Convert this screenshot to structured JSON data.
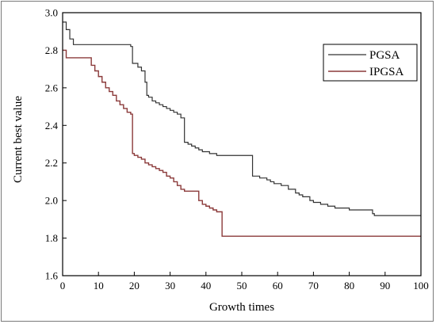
{
  "chart_data": {
    "type": "line",
    "title": "",
    "xlabel": "Growth times",
    "ylabel": "Current best value",
    "xlim": [
      0,
      100
    ],
    "ylim": [
      1.6,
      3.0
    ],
    "x_ticks": [
      "0",
      "10",
      "20",
      "30",
      "40",
      "50",
      "60",
      "70",
      "80",
      "90",
      "100"
    ],
    "y_ticks": [
      "1.6",
      "1.8",
      "2.0",
      "2.2",
      "2.4",
      "2.6",
      "2.8",
      "3.0"
    ],
    "legend_position": "top-right",
    "grid": false,
    "series": [
      {
        "name": "PGSA",
        "color": "#333333",
        "x": [
          0,
          0.5,
          1,
          1.5,
          2,
          2.5,
          3,
          10,
          19,
          19.5,
          20,
          21,
          22,
          23,
          23.5,
          24,
          25,
          26,
          27,
          28,
          29,
          30,
          31,
          32,
          33,
          34,
          35,
          36,
          37,
          38,
          39,
          40,
          41,
          42,
          43,
          44,
          45,
          50,
          53,
          54,
          55,
          56,
          57,
          58,
          59,
          60,
          61,
          62,
          63,
          64,
          65,
          66,
          67,
          68,
          69,
          70,
          72,
          74,
          75,
          76,
          78,
          80,
          82,
          84,
          86,
          86.5,
          87,
          88,
          100
        ],
        "y": [
          2.95,
          2.95,
          2.91,
          2.91,
          2.86,
          2.86,
          2.83,
          2.83,
          2.82,
          2.73,
          2.73,
          2.71,
          2.69,
          2.63,
          2.56,
          2.55,
          2.53,
          2.52,
          2.51,
          2.5,
          2.49,
          2.48,
          2.47,
          2.46,
          2.44,
          2.31,
          2.3,
          2.29,
          2.28,
          2.27,
          2.26,
          2.26,
          2.25,
          2.25,
          2.24,
          2.24,
          2.24,
          2.24,
          2.13,
          2.13,
          2.12,
          2.12,
          2.11,
          2.1,
          2.09,
          2.09,
          2.08,
          2.08,
          2.06,
          2.06,
          2.04,
          2.03,
          2.02,
          2.02,
          2.0,
          1.99,
          1.98,
          1.97,
          1.97,
          1.96,
          1.96,
          1.95,
          1.95,
          1.95,
          1.95,
          1.93,
          1.92,
          1.92,
          1.92
        ]
      },
      {
        "name": "IPGSA",
        "color": "#8b3a3a",
        "x": [
          0,
          1,
          7,
          8,
          9,
          10,
          11,
          12,
          13,
          14,
          15,
          16,
          17,
          18,
          19,
          19.5,
          20,
          21,
          22,
          23,
          24,
          25,
          26,
          27,
          28,
          29,
          30,
          31,
          32,
          33,
          34,
          35,
          36,
          37,
          38,
          39,
          40,
          41,
          42,
          43,
          44,
          44.5,
          60,
          100
        ],
        "y": [
          2.8,
          2.76,
          2.76,
          2.72,
          2.69,
          2.66,
          2.63,
          2.6,
          2.58,
          2.56,
          2.53,
          2.51,
          2.49,
          2.47,
          2.46,
          2.25,
          2.24,
          2.23,
          2.22,
          2.2,
          2.19,
          2.18,
          2.17,
          2.16,
          2.15,
          2.13,
          2.12,
          2.1,
          2.08,
          2.06,
          2.05,
          2.05,
          2.05,
          2.05,
          2.0,
          1.98,
          1.97,
          1.96,
          1.95,
          1.94,
          1.94,
          1.81,
          1.81,
          1.81
        ]
      }
    ]
  }
}
